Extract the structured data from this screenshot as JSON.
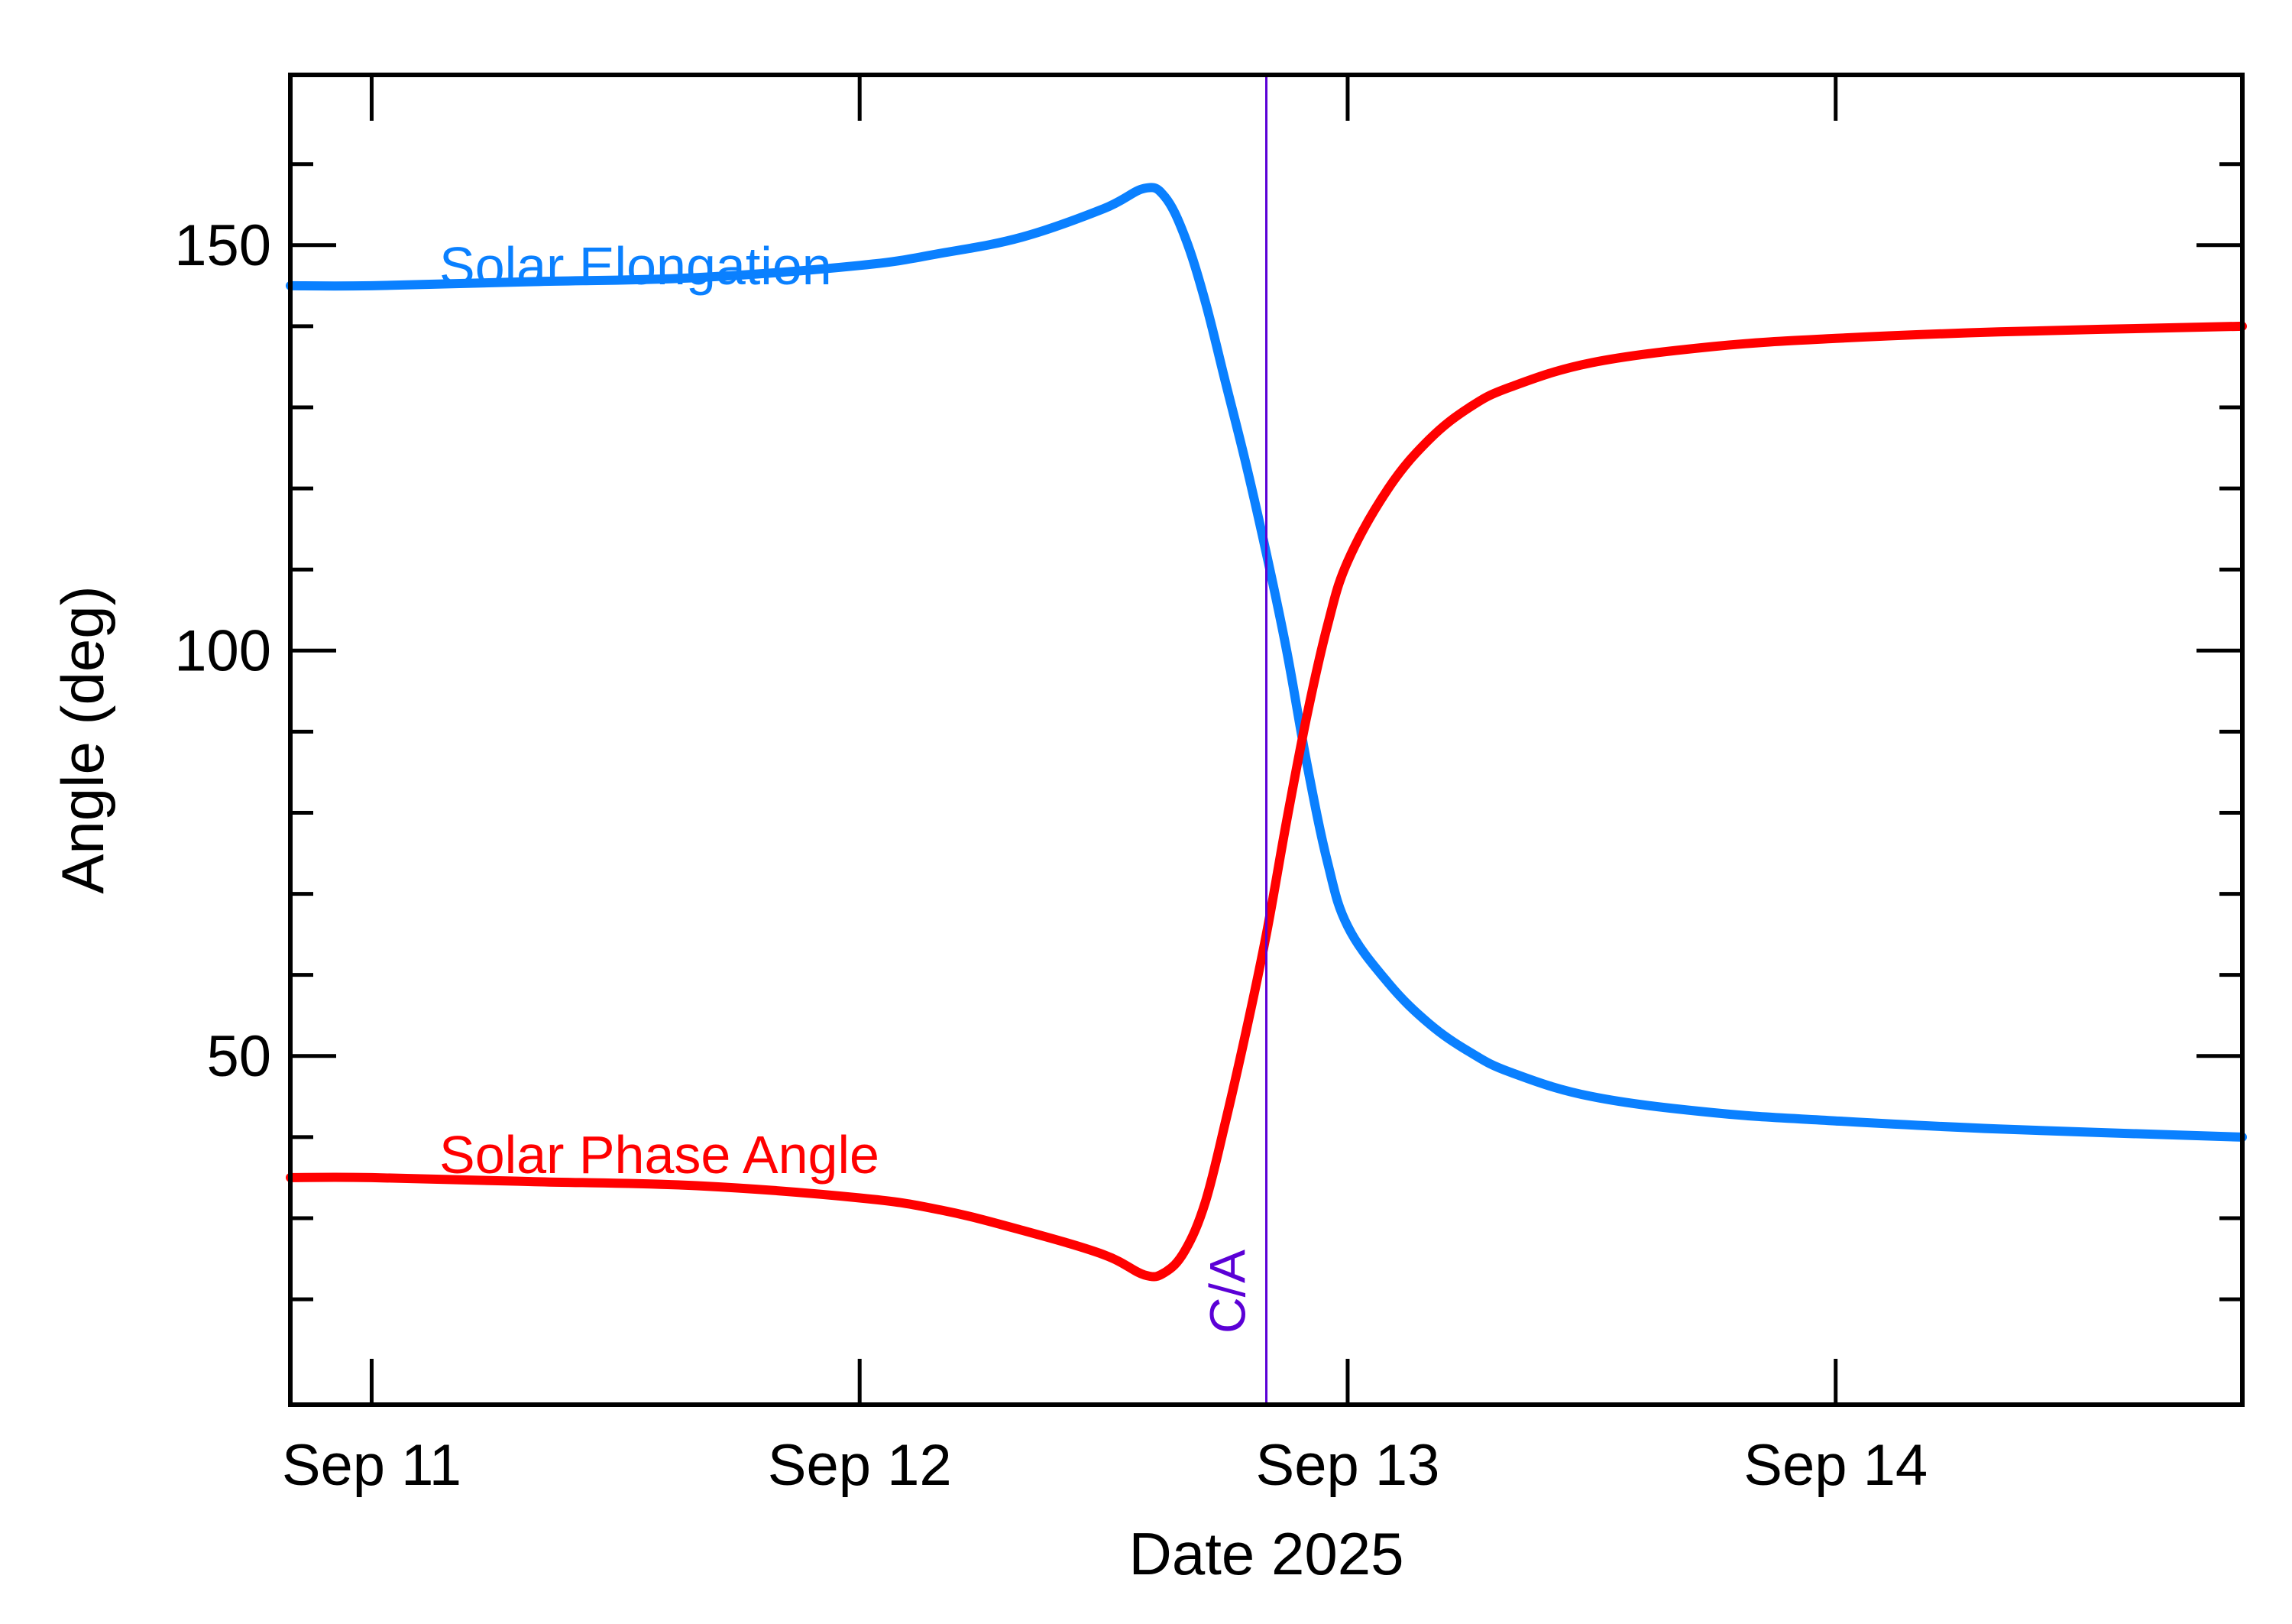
{
  "chart_data": {
    "type": "line",
    "xlabel": "Date 2025",
    "ylabel": "Angle (deg)",
    "xlim": [
      "2025-09-10T20:00",
      "2025-09-14T20:00"
    ],
    "ylim": [
      7,
      171
    ],
    "x_ticks": [
      {
        "value": "2025-09-11",
        "label": "Sep 11"
      },
      {
        "value": "2025-09-12",
        "label": "Sep 12"
      },
      {
        "value": "2025-09-13",
        "label": "Sep 13"
      },
      {
        "value": "2025-09-14",
        "label": "Sep 14"
      }
    ],
    "y_ticks": [
      50,
      100,
      150
    ],
    "y_minor_ticks": [
      20,
      30,
      40,
      60,
      70,
      80,
      90,
      110,
      120,
      130,
      140,
      160
    ],
    "closest_approach": {
      "label": "C/A",
      "x": "2025-09-12T20:00",
      "color": "#5b00d6"
    },
    "series": [
      {
        "name": "Solar Elongation",
        "color": "#0a80ff",
        "x": [
          "2025-09-10T20:00",
          "2025-09-11T00:00",
          "2025-09-11T08:00",
          "2025-09-11T16:00",
          "2025-09-12T00:00",
          "2025-09-12T04:00",
          "2025-09-12T08:00",
          "2025-09-12T12:00",
          "2025-09-12T14:00",
          "2025-09-12T15:00",
          "2025-09-12T16:00",
          "2025-09-12T17:00",
          "2025-09-12T18:00",
          "2025-09-12T19:00",
          "2025-09-12T20:00",
          "2025-09-12T21:00",
          "2025-09-12T22:00",
          "2025-09-12T23:00",
          "2025-09-13T00:00",
          "2025-09-13T02:00",
          "2025-09-13T04:00",
          "2025-09-13T06:00",
          "2025-09-13T08:00",
          "2025-09-13T12:00",
          "2025-09-13T18:00",
          "2025-09-14T00:00",
          "2025-09-14T08:00",
          "2025-09-14T20:00"
        ],
        "y": [
          145,
          145,
          145.5,
          146,
          147.5,
          149,
          151,
          154.5,
          157,
          156,
          151,
          143,
          133,
          123,
          112,
          100,
          86,
          74,
          66,
          59,
          54,
          50.5,
          48,
          45,
          43,
          42,
          41,
          40
        ]
      },
      {
        "name": "Solar Phase Angle",
        "color": "#ff0000",
        "x": [
          "2025-09-10T20:00",
          "2025-09-11T00:00",
          "2025-09-11T08:00",
          "2025-09-11T16:00",
          "2025-09-12T00:00",
          "2025-09-12T04:00",
          "2025-09-12T08:00",
          "2025-09-12T12:00",
          "2025-09-12T14:00",
          "2025-09-12T15:00",
          "2025-09-12T16:00",
          "2025-09-12T17:00",
          "2025-09-12T18:00",
          "2025-09-12T19:00",
          "2025-09-12T20:00",
          "2025-09-12T21:00",
          "2025-09-12T22:00",
          "2025-09-12T23:00",
          "2025-09-13T00:00",
          "2025-09-13T02:00",
          "2025-09-13T04:00",
          "2025-09-13T06:00",
          "2025-09-13T08:00",
          "2025-09-13T12:00",
          "2025-09-13T18:00",
          "2025-09-14T00:00",
          "2025-09-14T08:00",
          "2025-09-14T20:00"
        ],
        "y": [
          35,
          35,
          34.5,
          34,
          32.5,
          31,
          28.5,
          25.5,
          23,
          23.3,
          26,
          32,
          42,
          53,
          65,
          79,
          92,
          103,
          111,
          120,
          126,
          130,
          132.5,
          135.5,
          137.5,
          138.5,
          139.3,
          140
        ]
      }
    ]
  }
}
